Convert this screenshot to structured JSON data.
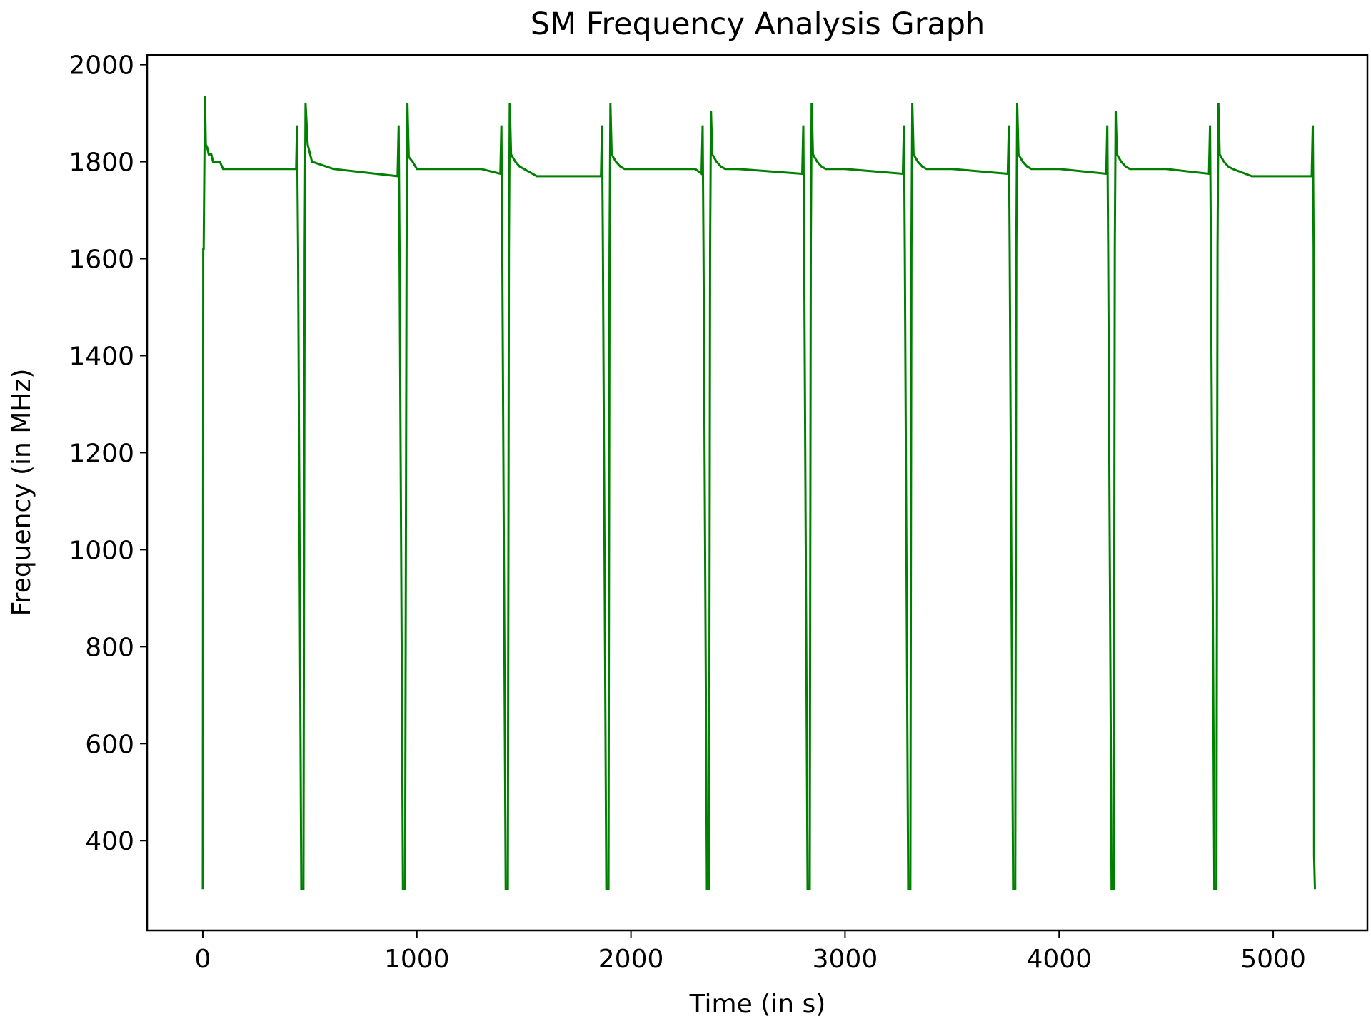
{
  "chart_data": {
    "type": "line",
    "title": "SM Frequency Analysis Graph",
    "xlabel": "Time (in s)",
    "ylabel": "Frequency (in MHz)",
    "xlim": [
      -260,
      5440
    ],
    "ylim": [
      215,
      2020
    ],
    "xticks": [
      0,
      1000,
      2000,
      3000,
      4000,
      5000
    ],
    "xtick_labels": [
      "0",
      "1000",
      "2000",
      "3000",
      "4000",
      "5000"
    ],
    "yticks": [
      400,
      600,
      800,
      1000,
      1200,
      1400,
      1600,
      1800,
      2000
    ],
    "ytick_labels": [
      "400",
      "600",
      "800",
      "1000",
      "1200",
      "1400",
      "1600",
      "1800",
      "2000"
    ],
    "grid": false,
    "legend": "none",
    "colors": {
      "line": "#008000",
      "axes": "#000000",
      "background": "#ffffff"
    },
    "series": [
      {
        "x": [
          0,
          2,
          4,
          10,
          14,
          20,
          28,
          40,
          48,
          60,
          80,
          95,
          200,
          340,
          370,
          436,
          440,
          445,
          460,
          470,
          476,
          480,
          490,
          510,
          610,
          910,
          915,
          919,
          935,
          945,
          952,
          956,
          962,
          980,
          1000,
          1100,
          1300,
          1390,
          1395,
          1399,
          1415,
          1425,
          1430,
          1434,
          1440,
          1460,
          1480,
          1500,
          1560,
          1860,
          1865,
          1869,
          1885,
          1895,
          1900,
          1904,
          1910,
          1930,
          1950,
          1970,
          2100,
          2300,
          2330,
          2335,
          2339,
          2355,
          2365,
          2370,
          2374,
          2380,
          2400,
          2420,
          2440,
          2500,
          2800,
          2805,
          2809,
          2825,
          2835,
          2840,
          2844,
          2850,
          2870,
          2890,
          2910,
          3000,
          3270,
          3275,
          3279,
          3295,
          3305,
          3310,
          3314,
          3320,
          3340,
          3360,
          3380,
          3500,
          3760,
          3765,
          3769,
          3785,
          3795,
          3800,
          3804,
          3810,
          3830,
          3850,
          3870,
          4000,
          4220,
          4225,
          4229,
          4245,
          4255,
          4260,
          4264,
          4270,
          4290,
          4310,
          4330,
          4500,
          4700,
          4705,
          4709,
          4725,
          4735,
          4740,
          4744,
          4750,
          4770,
          4790,
          4810,
          4900,
          5180,
          5185,
          5189,
          5191,
          5195
        ],
        "y": [
          300,
          1620,
          1620,
          1935,
          1835,
          1830,
          1815,
          1815,
          1800,
          1800,
          1800,
          1785,
          1785,
          1785,
          1785,
          1785,
          1875,
          1620,
          300,
          300,
          1620,
          1920,
          1835,
          1800,
          1785,
          1770,
          1875,
          1620,
          300,
          300,
          1620,
          1920,
          1810,
          1800,
          1785,
          1785,
          1785,
          1775,
          1875,
          1620,
          300,
          300,
          1620,
          1920,
          1815,
          1800,
          1790,
          1785,
          1770,
          1770,
          1875,
          1620,
          300,
          300,
          1620,
          1920,
          1815,
          1800,
          1790,
          1785,
          1785,
          1785,
          1775,
          1875,
          1620,
          300,
          300,
          1620,
          1905,
          1815,
          1800,
          1790,
          1785,
          1785,
          1775,
          1875,
          1620,
          300,
          300,
          1620,
          1920,
          1815,
          1800,
          1790,
          1785,
          1785,
          1775,
          1875,
          1620,
          300,
          300,
          1620,
          1920,
          1815,
          1800,
          1790,
          1785,
          1785,
          1775,
          1875,
          1620,
          300,
          300,
          1620,
          1920,
          1815,
          1800,
          1790,
          1785,
          1785,
          1775,
          1875,
          1620,
          300,
          300,
          1620,
          1905,
          1815,
          1800,
          1790,
          1785,
          1785,
          1775,
          1875,
          1620,
          300,
          300,
          1620,
          1920,
          1815,
          1800,
          1790,
          1785,
          1770,
          1770,
          1875,
          1620,
          370,
          300
        ]
      }
    ]
  }
}
